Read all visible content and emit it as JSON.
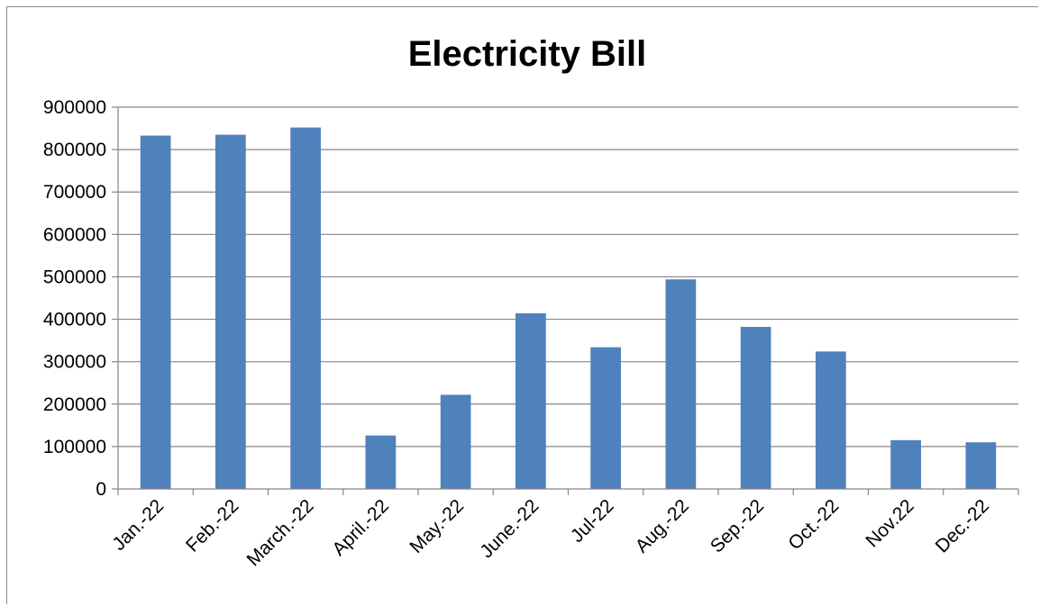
{
  "chart_data": {
    "type": "bar",
    "title": "Electricity Bill",
    "xlabel": "",
    "ylabel": "",
    "categories": [
      "Jan.-22",
      "Feb.-22",
      "March.-22",
      "April.-22",
      "May.-22",
      "June.-22",
      "Jul-22",
      "Aug.-22",
      "Sep.-22",
      "Oct.-22",
      "Nov.22",
      "Dec.-22"
    ],
    "values": [
      833000,
      835000,
      852000,
      126000,
      222000,
      414000,
      334000,
      494000,
      382000,
      324000,
      115000,
      110000
    ],
    "ylim": [
      0,
      900000
    ],
    "yticks": [
      "0",
      "100000",
      "200000",
      "300000",
      "400000",
      "500000",
      "600000",
      "700000",
      "800000",
      "900000"
    ],
    "grid": true,
    "legend": "none",
    "bar_color": "#4f81bd",
    "grid_color": "#868686"
  }
}
